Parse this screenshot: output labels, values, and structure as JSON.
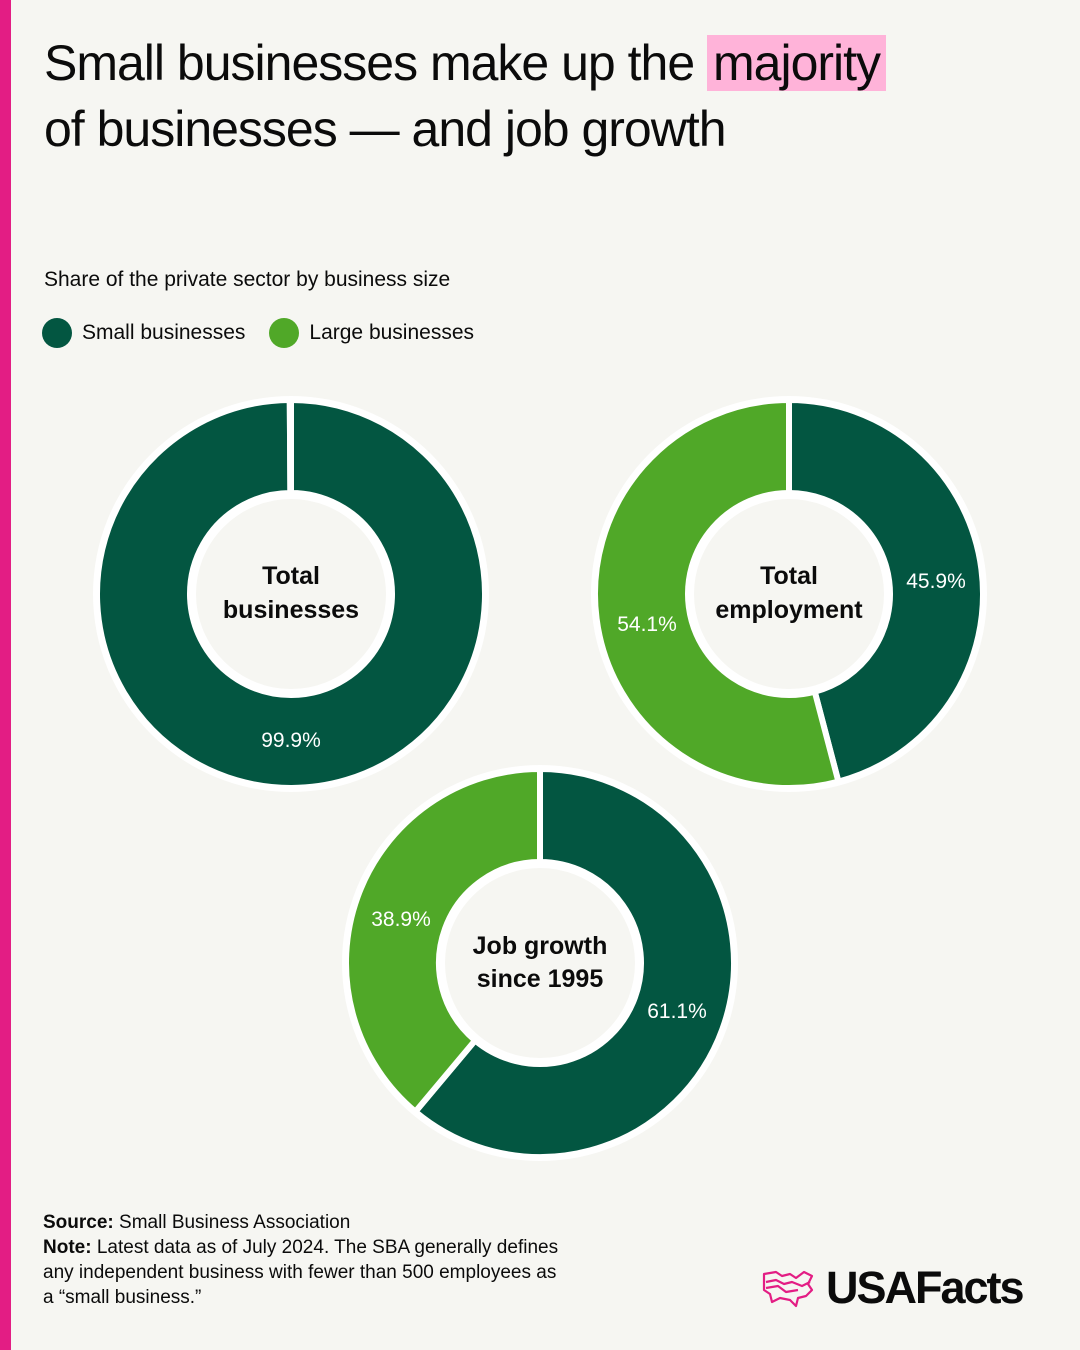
{
  "header": {
    "title_part1": "Small businesses make up the ",
    "title_highlight": "majority",
    "title_part2": "of businesses — and job growth",
    "subtitle": "Share of the private sector by business size"
  },
  "legend": [
    {
      "label": "Small businesses",
      "color": "#035641"
    },
    {
      "label": "Large businesses",
      "color": "#50a828"
    }
  ],
  "colors": {
    "small": "#035641",
    "large": "#50a828",
    "accent": "#e31d84",
    "highlight": "#ffb3d9",
    "background": "#f6f6f2"
  },
  "chart_data": [
    {
      "type": "pie",
      "title": "Total businesses",
      "center_label": [
        "Total",
        "businesses"
      ],
      "categories": [
        "Small businesses",
        "Large businesses"
      ],
      "values": [
        99.9,
        0.1
      ],
      "labels": [
        "99.9%",
        ""
      ]
    },
    {
      "type": "pie",
      "title": "Total employment",
      "center_label": [
        "Total",
        "employment"
      ],
      "categories": [
        "Small businesses",
        "Large businesses"
      ],
      "values": [
        45.9,
        54.1
      ],
      "labels": [
        "45.9%",
        "54.1%"
      ]
    },
    {
      "type": "pie",
      "title": "Job growth since 1995",
      "center_label": [
        "Job growth",
        "since 1995"
      ],
      "categories": [
        "Small businesses",
        "Large businesses"
      ],
      "values": [
        61.1,
        38.9
      ],
      "labels": [
        "61.1%",
        "38.9%"
      ]
    }
  ],
  "footer": {
    "source_label": "Source:",
    "source_text": " Small Business Association",
    "note_label": "Note:",
    "note_text": " Latest data as of July 2024. The SBA generally defines any independent business with fewer than 500 employees as a “small business.”"
  },
  "logo": {
    "text": "USAFacts"
  }
}
